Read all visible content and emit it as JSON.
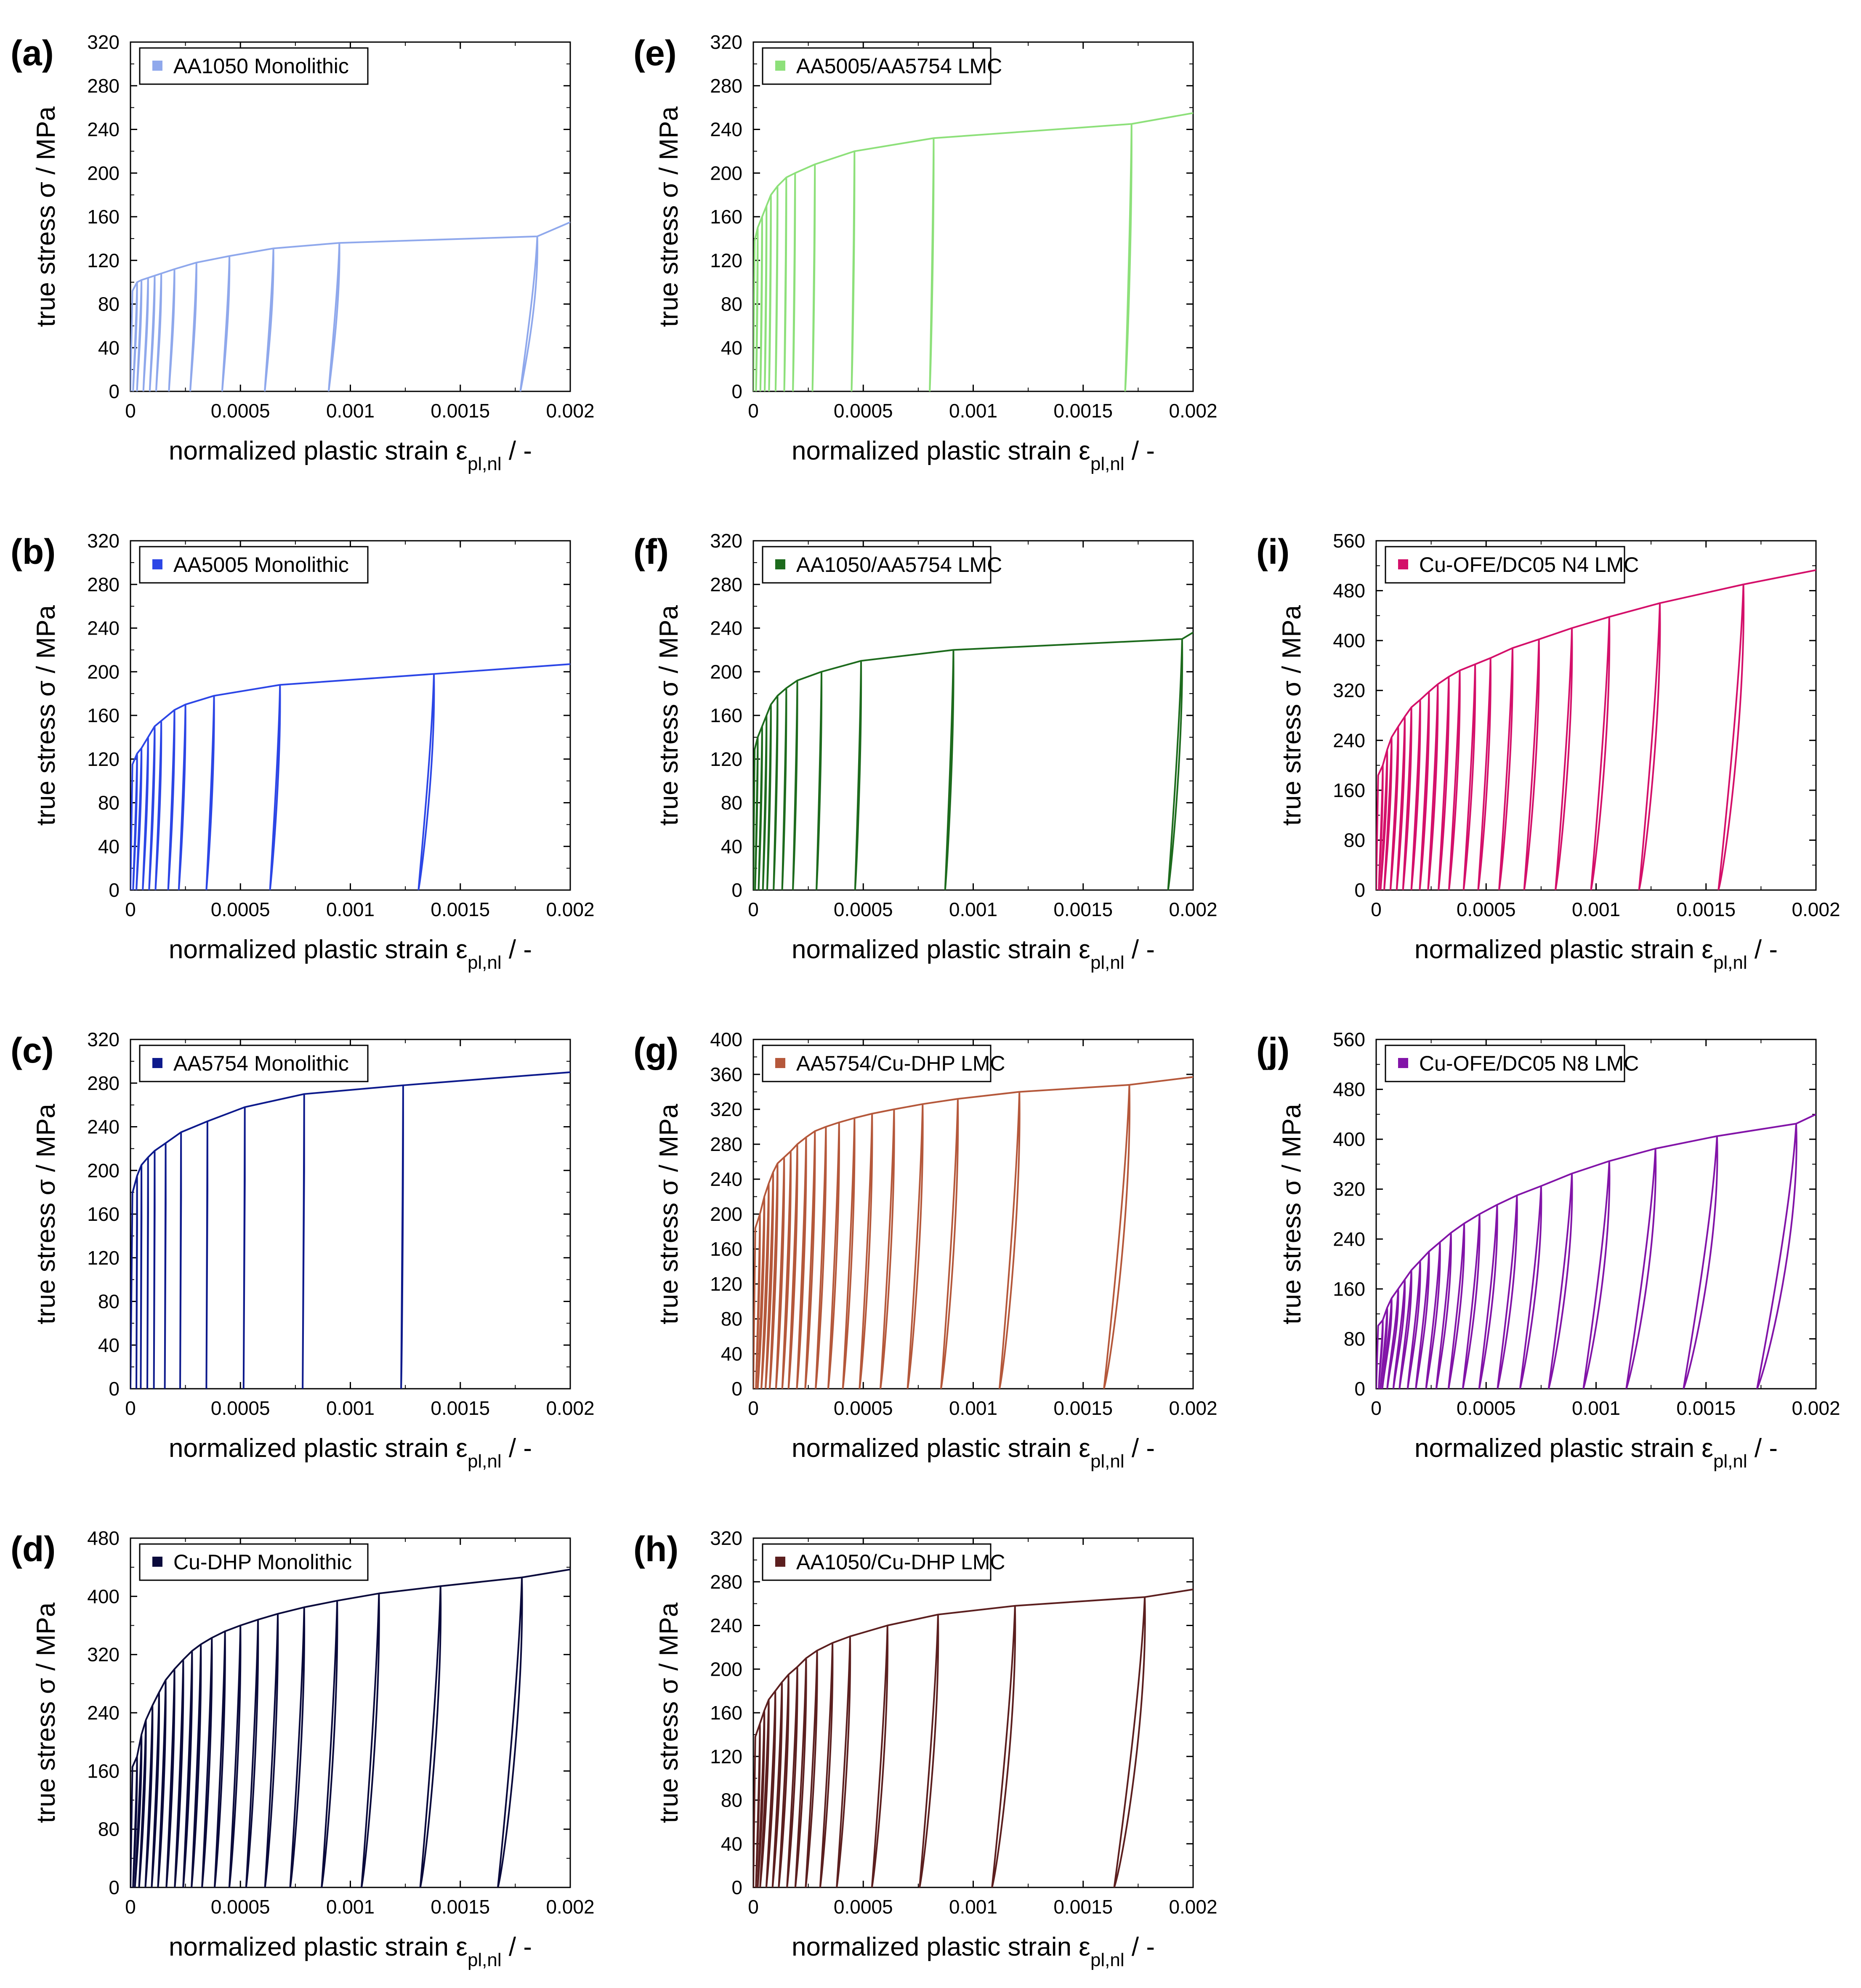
{
  "figure": {
    "x_label_main": "normalized plastic strain ε",
    "x_label_sub": "pl,nl",
    "x_label_suffix": " / -",
    "y_label": "true stress σ / MPa"
  },
  "chart_data": [
    {
      "panel": "(a)",
      "type": "line",
      "legend": "AA1050 Monolithic",
      "color": "#8fa8ec",
      "x_ticks": [
        "0",
        "0.0005",
        "0.001",
        "0.0015",
        "0.002"
      ],
      "xlim": [
        0,
        0.002
      ],
      "y_ticks": [
        "0",
        "40",
        "80",
        "120",
        "160",
        "200",
        "240",
        "280",
        "320"
      ],
      "ylim": [
        0,
        320
      ],
      "unload_points": [
        [
          3e-05,
          100
        ],
        [
          5e-05,
          102
        ],
        [
          8e-05,
          104
        ],
        [
          0.00011,
          106
        ],
        [
          0.00014,
          108
        ],
        [
          0.0002,
          112
        ],
        [
          0.0003,
          118
        ],
        [
          0.00045,
          124
        ],
        [
          0.00065,
          131
        ],
        [
          0.00095,
          136
        ],
        [
          0.00185,
          142
        ]
      ],
      "final_point": [
        0.002,
        155
      ],
      "loop_depth": 7.5e-05
    },
    {
      "panel": "(b)",
      "type": "line",
      "legend": "AA5005 Monolithic",
      "color": "#2c46e6",
      "x_ticks": [
        "0",
        "0.0005",
        "0.001",
        "0.0015",
        "0.002"
      ],
      "xlim": [
        0,
        0.002
      ],
      "y_ticks": [
        "0",
        "40",
        "80",
        "120",
        "160",
        "200",
        "240",
        "280",
        "320"
      ],
      "ylim": [
        0,
        320
      ],
      "unload_points": [
        [
          3e-05,
          125
        ],
        [
          5e-05,
          130
        ],
        [
          8e-05,
          140
        ],
        [
          0.00011,
          150
        ],
        [
          0.00014,
          155
        ],
        [
          0.0002,
          165
        ],
        [
          0.00025,
          170
        ],
        [
          0.00038,
          178
        ],
        [
          0.00068,
          188
        ],
        [
          0.00138,
          198
        ]
      ],
      "final_point": [
        0.002,
        207
      ],
      "loop_depth": 8.5e-05
    },
    {
      "panel": "(c)",
      "type": "line",
      "legend": "AA5754 Monolithic",
      "color": "#0d1a8c",
      "x_ticks": [
        "0",
        "0.0005",
        "0.001",
        "0.0015",
        "0.002"
      ],
      "xlim": [
        0,
        0.002
      ],
      "y_ticks": [
        "0",
        "40",
        "80",
        "120",
        "160",
        "200",
        "240",
        "280",
        "320"
      ],
      "ylim": [
        0,
        320
      ],
      "unload_points": [
        [
          3e-05,
          195
        ],
        [
          5e-05,
          205
        ],
        [
          8e-05,
          212
        ],
        [
          0.00011,
          218
        ],
        [
          0.00016,
          225
        ],
        [
          0.00023,
          235
        ],
        [
          0.00035,
          245
        ],
        [
          0.00052,
          258
        ],
        [
          0.00079,
          270
        ],
        [
          0.00124,
          278
        ]
      ],
      "final_point": [
        0.002,
        290
      ],
      "loop_depth": 1.2e-05
    },
    {
      "panel": "(d)",
      "type": "line",
      "legend": "Cu-DHP Monolithic",
      "color": "#0a0a3c",
      "x_ticks": [
        "0",
        "0.0005",
        "0.001",
        "0.0015",
        "0.002"
      ],
      "xlim": [
        0,
        0.002
      ],
      "y_ticks": [
        "0",
        "80",
        "160",
        "240",
        "320",
        "400",
        "480"
      ],
      "ylim": [
        0,
        480
      ],
      "unload_points": [
        [
          3e-05,
          180
        ],
        [
          5e-05,
          210
        ],
        [
          7e-05,
          230
        ],
        [
          0.0001,
          250
        ],
        [
          0.00013,
          268
        ],
        [
          0.00016,
          285
        ],
        [
          0.0002,
          300
        ],
        [
          0.00024,
          313
        ],
        [
          0.00028,
          325
        ],
        [
          0.00032,
          334
        ],
        [
          0.00037,
          343
        ],
        [
          0.00043,
          352
        ],
        [
          0.0005,
          360
        ],
        [
          0.00058,
          368
        ],
        [
          0.00067,
          376
        ],
        [
          0.00079,
          385
        ],
        [
          0.00094,
          394
        ],
        [
          0.00113,
          404
        ],
        [
          0.00141,
          414
        ],
        [
          0.00178,
          426
        ]
      ],
      "final_point": [
        0.002,
        437
      ],
      "loop_depth": 0.00011
    },
    {
      "panel": "(e)",
      "type": "line",
      "legend": "AA5005/AA5754 LMC",
      "color": "#8de07a",
      "x_ticks": [
        "0",
        "0.0005",
        "0.001",
        "0.0015",
        "0.002"
      ],
      "xlim": [
        0,
        0.002
      ],
      "y_ticks": [
        "0",
        "40",
        "80",
        "120",
        "160",
        "200",
        "240",
        "280",
        "320"
      ],
      "ylim": [
        0,
        320
      ],
      "unload_points": [
        [
          2e-05,
          150
        ],
        [
          4e-05,
          160
        ],
        [
          6e-05,
          170
        ],
        [
          8e-05,
          180
        ],
        [
          0.00011,
          188
        ],
        [
          0.00015,
          196
        ],
        [
          0.00019,
          200
        ],
        [
          0.00028,
          208
        ],
        [
          0.00046,
          220
        ],
        [
          0.00082,
          232
        ],
        [
          0.00172,
          245
        ]
      ],
      "final_point": [
        0.002,
        255
      ],
      "loop_depth": 3e-05
    },
    {
      "panel": "(f)",
      "type": "line",
      "legend": "AA1050/AA5754 LMC",
      "color": "#1d6b1d",
      "x_ticks": [
        "0",
        "0.0005",
        "0.001",
        "0.0015",
        "0.002"
      ],
      "xlim": [
        0,
        0.002
      ],
      "y_ticks": [
        "0",
        "40",
        "80",
        "120",
        "160",
        "200",
        "240",
        "280",
        "320"
      ],
      "ylim": [
        0,
        320
      ],
      "unload_points": [
        [
          2e-05,
          140
        ],
        [
          4e-05,
          150
        ],
        [
          6e-05,
          160
        ],
        [
          8e-05,
          170
        ],
        [
          0.00011,
          178
        ],
        [
          0.00015,
          185
        ],
        [
          0.0002,
          192
        ],
        [
          0.00031,
          200
        ],
        [
          0.00049,
          210
        ],
        [
          0.00091,
          220
        ],
        [
          0.00195,
          230
        ]
      ],
      "final_point": [
        0.002,
        236
      ],
      "loop_depth": 6e-05
    },
    {
      "panel": "(g)",
      "type": "line",
      "legend": "AA5754/Cu-DHP LMC",
      "color": "#b5583b",
      "x_ticks": [
        "0",
        "0.0005",
        "0.001",
        "0.0015",
        "0.002"
      ],
      "xlim": [
        0,
        0.002
      ],
      "y_ticks": [
        "0",
        "40",
        "80",
        "120",
        "160",
        "200",
        "240",
        "280",
        "320",
        "360",
        "400"
      ],
      "ylim": [
        0,
        400
      ],
      "unload_points": [
        [
          3e-05,
          200
        ],
        [
          5e-05,
          220
        ],
        [
          7e-05,
          235
        ],
        [
          9e-05,
          248
        ],
        [
          0.00011,
          258
        ],
        [
          0.00014,
          265
        ],
        [
          0.00017,
          272
        ],
        [
          0.0002,
          280
        ],
        [
          0.00024,
          288
        ],
        [
          0.00028,
          295
        ],
        [
          0.00033,
          300
        ],
        [
          0.00039,
          305
        ],
        [
          0.00046,
          310
        ],
        [
          0.00054,
          315
        ],
        [
          0.00064,
          320
        ],
        [
          0.00077,
          326
        ],
        [
          0.00093,
          332
        ],
        [
          0.00121,
          340
        ],
        [
          0.00171,
          348
        ]
      ],
      "final_point": [
        0.002,
        357
      ],
      "loop_depth": 0.00012
    },
    {
      "panel": "(h)",
      "type": "line",
      "legend": "AA1050/Cu-DHP LMC",
      "color": "#5c1f1f",
      "x_ticks": [
        "0",
        "0.0005",
        "0.001",
        "0.0015",
        "0.002"
      ],
      "xlim": [
        0,
        0.002
      ],
      "y_ticks": [
        "0",
        "40",
        "80",
        "120",
        "160",
        "200",
        "240",
        "280",
        "320"
      ],
      "ylim": [
        0,
        320
      ],
      "unload_points": [
        [
          3e-05,
          150
        ],
        [
          5e-05,
          162
        ],
        [
          7e-05,
          172
        ],
        [
          0.0001,
          180
        ],
        [
          0.00013,
          188
        ],
        [
          0.00016,
          195
        ],
        [
          0.0002,
          202
        ],
        [
          0.00024,
          210
        ],
        [
          0.00029,
          217
        ],
        [
          0.00036,
          224
        ],
        [
          0.00044,
          230
        ],
        [
          0.00061,
          240
        ],
        [
          0.00084,
          250
        ],
        [
          0.00119,
          258
        ],
        [
          0.00178,
          266
        ]
      ],
      "final_point": [
        0.002,
        273
      ],
      "loop_depth": 0.00014
    },
    {
      "panel": "(i)",
      "type": "line",
      "legend": "Cu-OFE/DC05 N4 LMC",
      "color": "#d4106a",
      "x_ticks": [
        "0",
        "0.0005",
        "0.001",
        "0.0015",
        "0.002"
      ],
      "xlim": [
        0,
        0.002
      ],
      "y_ticks": [
        "0",
        "80",
        "160",
        "240",
        "320",
        "400",
        "480",
        "560"
      ],
      "ylim": [
        0,
        560
      ],
      "unload_points": [
        [
          3e-05,
          200
        ],
        [
          5e-05,
          225
        ],
        [
          7e-05,
          245
        ],
        [
          0.0001,
          262
        ],
        [
          0.00013,
          278
        ],
        [
          0.00016,
          293
        ],
        [
          0.0002,
          305
        ],
        [
          0.00024,
          318
        ],
        [
          0.00028,
          330
        ],
        [
          0.00033,
          342
        ],
        [
          0.00038,
          352
        ],
        [
          0.00045,
          362
        ],
        [
          0.00052,
          372
        ],
        [
          0.00062,
          388
        ],
        [
          0.00074,
          402
        ],
        [
          0.00089,
          420
        ],
        [
          0.00106,
          438
        ],
        [
          0.00129,
          460
        ],
        [
          0.00167,
          490
        ]
      ],
      "final_point": [
        0.002,
        513
      ],
      "loop_depth": 0.00012
    },
    {
      "panel": "(j)",
      "type": "line",
      "legend": "Cu-OFE/DC05 N8 LMC",
      "color": "#8214a8",
      "x_ticks": [
        "0",
        "0.0005",
        "0.001",
        "0.0015",
        "0.002"
      ],
      "xlim": [
        0,
        0.002
      ],
      "y_ticks": [
        "0",
        "80",
        "160",
        "240",
        "320",
        "400",
        "480",
        "560"
      ],
      "ylim": [
        0,
        560
      ],
      "unload_points": [
        [
          3e-05,
          110
        ],
        [
          5e-05,
          130
        ],
        [
          7e-05,
          145
        ],
        [
          0.0001,
          160
        ],
        [
          0.00013,
          175
        ],
        [
          0.00016,
          190
        ],
        [
          0.0002,
          205
        ],
        [
          0.00024,
          220
        ],
        [
          0.00029,
          235
        ],
        [
          0.00034,
          250
        ],
        [
          0.0004,
          265
        ],
        [
          0.00047,
          280
        ],
        [
          0.00055,
          295
        ],
        [
          0.00064,
          310
        ],
        [
          0.00075,
          325
        ],
        [
          0.00089,
          345
        ],
        [
          0.00106,
          365
        ],
        [
          0.00127,
          385
        ],
        [
          0.00155,
          405
        ],
        [
          0.00191,
          425
        ]
      ],
      "final_point": [
        0.002,
        440
      ],
      "loop_depth": 0.00017
    }
  ]
}
